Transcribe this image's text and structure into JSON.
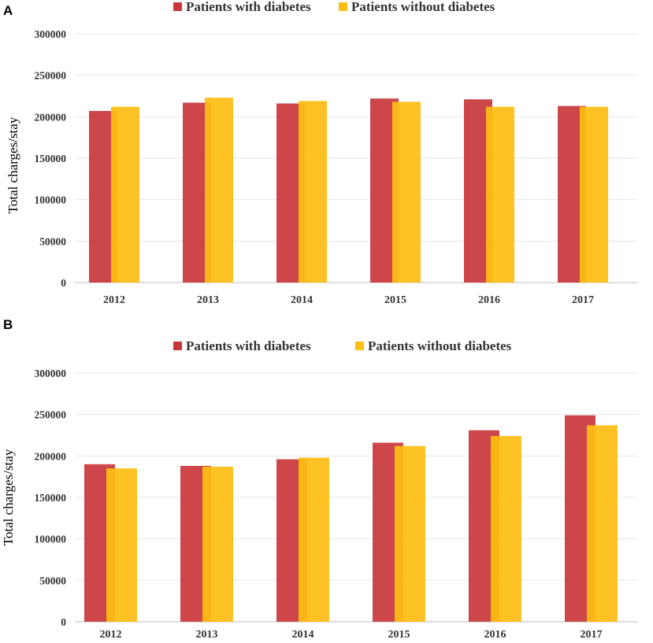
{
  "chart_data": [
    {
      "type": "bar",
      "panel_label": "A",
      "categories": [
        "2012",
        "2013",
        "2014",
        "2015",
        "2016",
        "2017"
      ],
      "series": [
        {
          "name": "Patients with diabetes",
          "color": "#c9363a",
          "values": [
            207000,
            217000,
            216000,
            222000,
            221000,
            213000
          ]
        },
        {
          "name": "Patients without diabetes",
          "color": "#fdbd12",
          "values": [
            212000,
            223000,
            219000,
            218000,
            212000,
            212000
          ]
        }
      ],
      "ylabel": "Total charges/stay",
      "xlabel": "",
      "ylim": [
        0,
        300000
      ],
      "yticks": [
        "0",
        "50000",
        "100000",
        "150000",
        "200000",
        "250000",
        "300000"
      ],
      "grid": true,
      "legend": "top-center"
    },
    {
      "type": "bar",
      "panel_label": "B",
      "categories": [
        "2012",
        "2013",
        "2014",
        "2015",
        "2016",
        "2017"
      ],
      "series": [
        {
          "name": "Patients with diabetes",
          "color": "#c9363a",
          "values": [
            190000,
            188000,
            196000,
            216000,
            231000,
            249000
          ]
        },
        {
          "name": "Patients without diabetes",
          "color": "#fdbd12",
          "values": [
            185000,
            187000,
            198000,
            212000,
            224000,
            237000
          ]
        }
      ],
      "ylabel": "Total charges/stay",
      "xlabel": "",
      "ylim": [
        0,
        300000
      ],
      "yticks": [
        "0",
        "50000",
        "100000",
        "150000",
        "200000",
        "250000",
        "300000"
      ],
      "grid": true,
      "legend": "top-center"
    }
  ]
}
